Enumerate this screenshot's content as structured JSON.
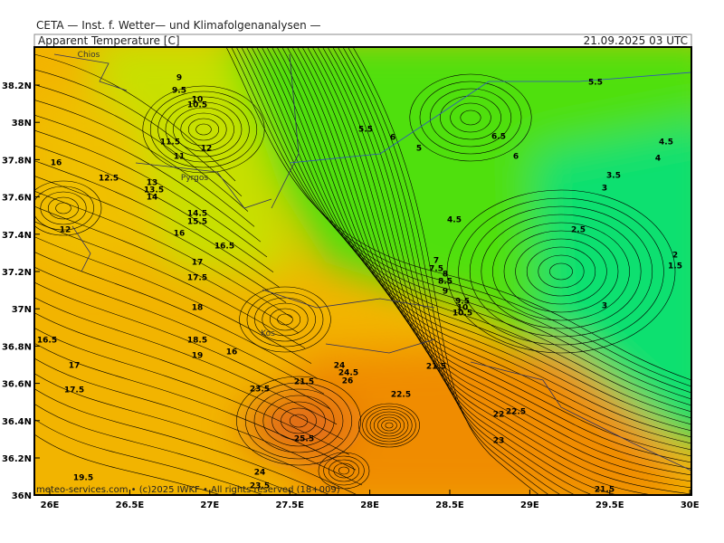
{
  "header": {
    "institute": "CETA — Inst. f. Wetter— und Klimafolgenanalysen —",
    "title": "Apparent Temperature [C]",
    "date": "21.09.2025 03 UTC"
  },
  "footer": "meteo-services.com • (c)2025 IWKF • All rights reserved (18+009)",
  "lon_labels": [
    "26E",
    "26.5E",
    "27E",
    "27.5E",
    "28E",
    "28.5E",
    "29E",
    "29.5E",
    "30E"
  ],
  "lat_labels": [
    "38.2N",
    "38N",
    "37.8N",
    "37.6N",
    "37.4N",
    "37.2N",
    "37N",
    "36.8N",
    "36.6N",
    "36.4N",
    "36.2N",
    "36N"
  ],
  "places": [
    "Chios",
    "Pyrgos",
    "Kos"
  ],
  "contour_labels": [
    "9",
    "9.5",
    "10",
    "10.5",
    "11.5",
    "12",
    "11",
    "16",
    "12.5",
    "13",
    "13.5",
    "14",
    "14.5",
    "15.5",
    "12",
    "16",
    "16.5",
    "17",
    "17.5",
    "18",
    "18.5",
    "19",
    "16",
    "16.5",
    "17",
    "17.5",
    "19.5",
    "23.5",
    "21.5",
    "24",
    "24.5",
    "26",
    "25.5",
    "24",
    "23.5",
    "22.5",
    "21.5",
    "22",
    "22.5",
    "23",
    "21.5",
    "5.5",
    "6",
    "5",
    "6.5",
    "6",
    "5.5",
    "4.5",
    "4",
    "3.5",
    "3",
    "4.5",
    "2.5",
    "2",
    "1.5",
    "3",
    "7",
    "7.5",
    "8",
    "8.5",
    "9",
    "9.5",
    "10",
    "10.5"
  ]
}
